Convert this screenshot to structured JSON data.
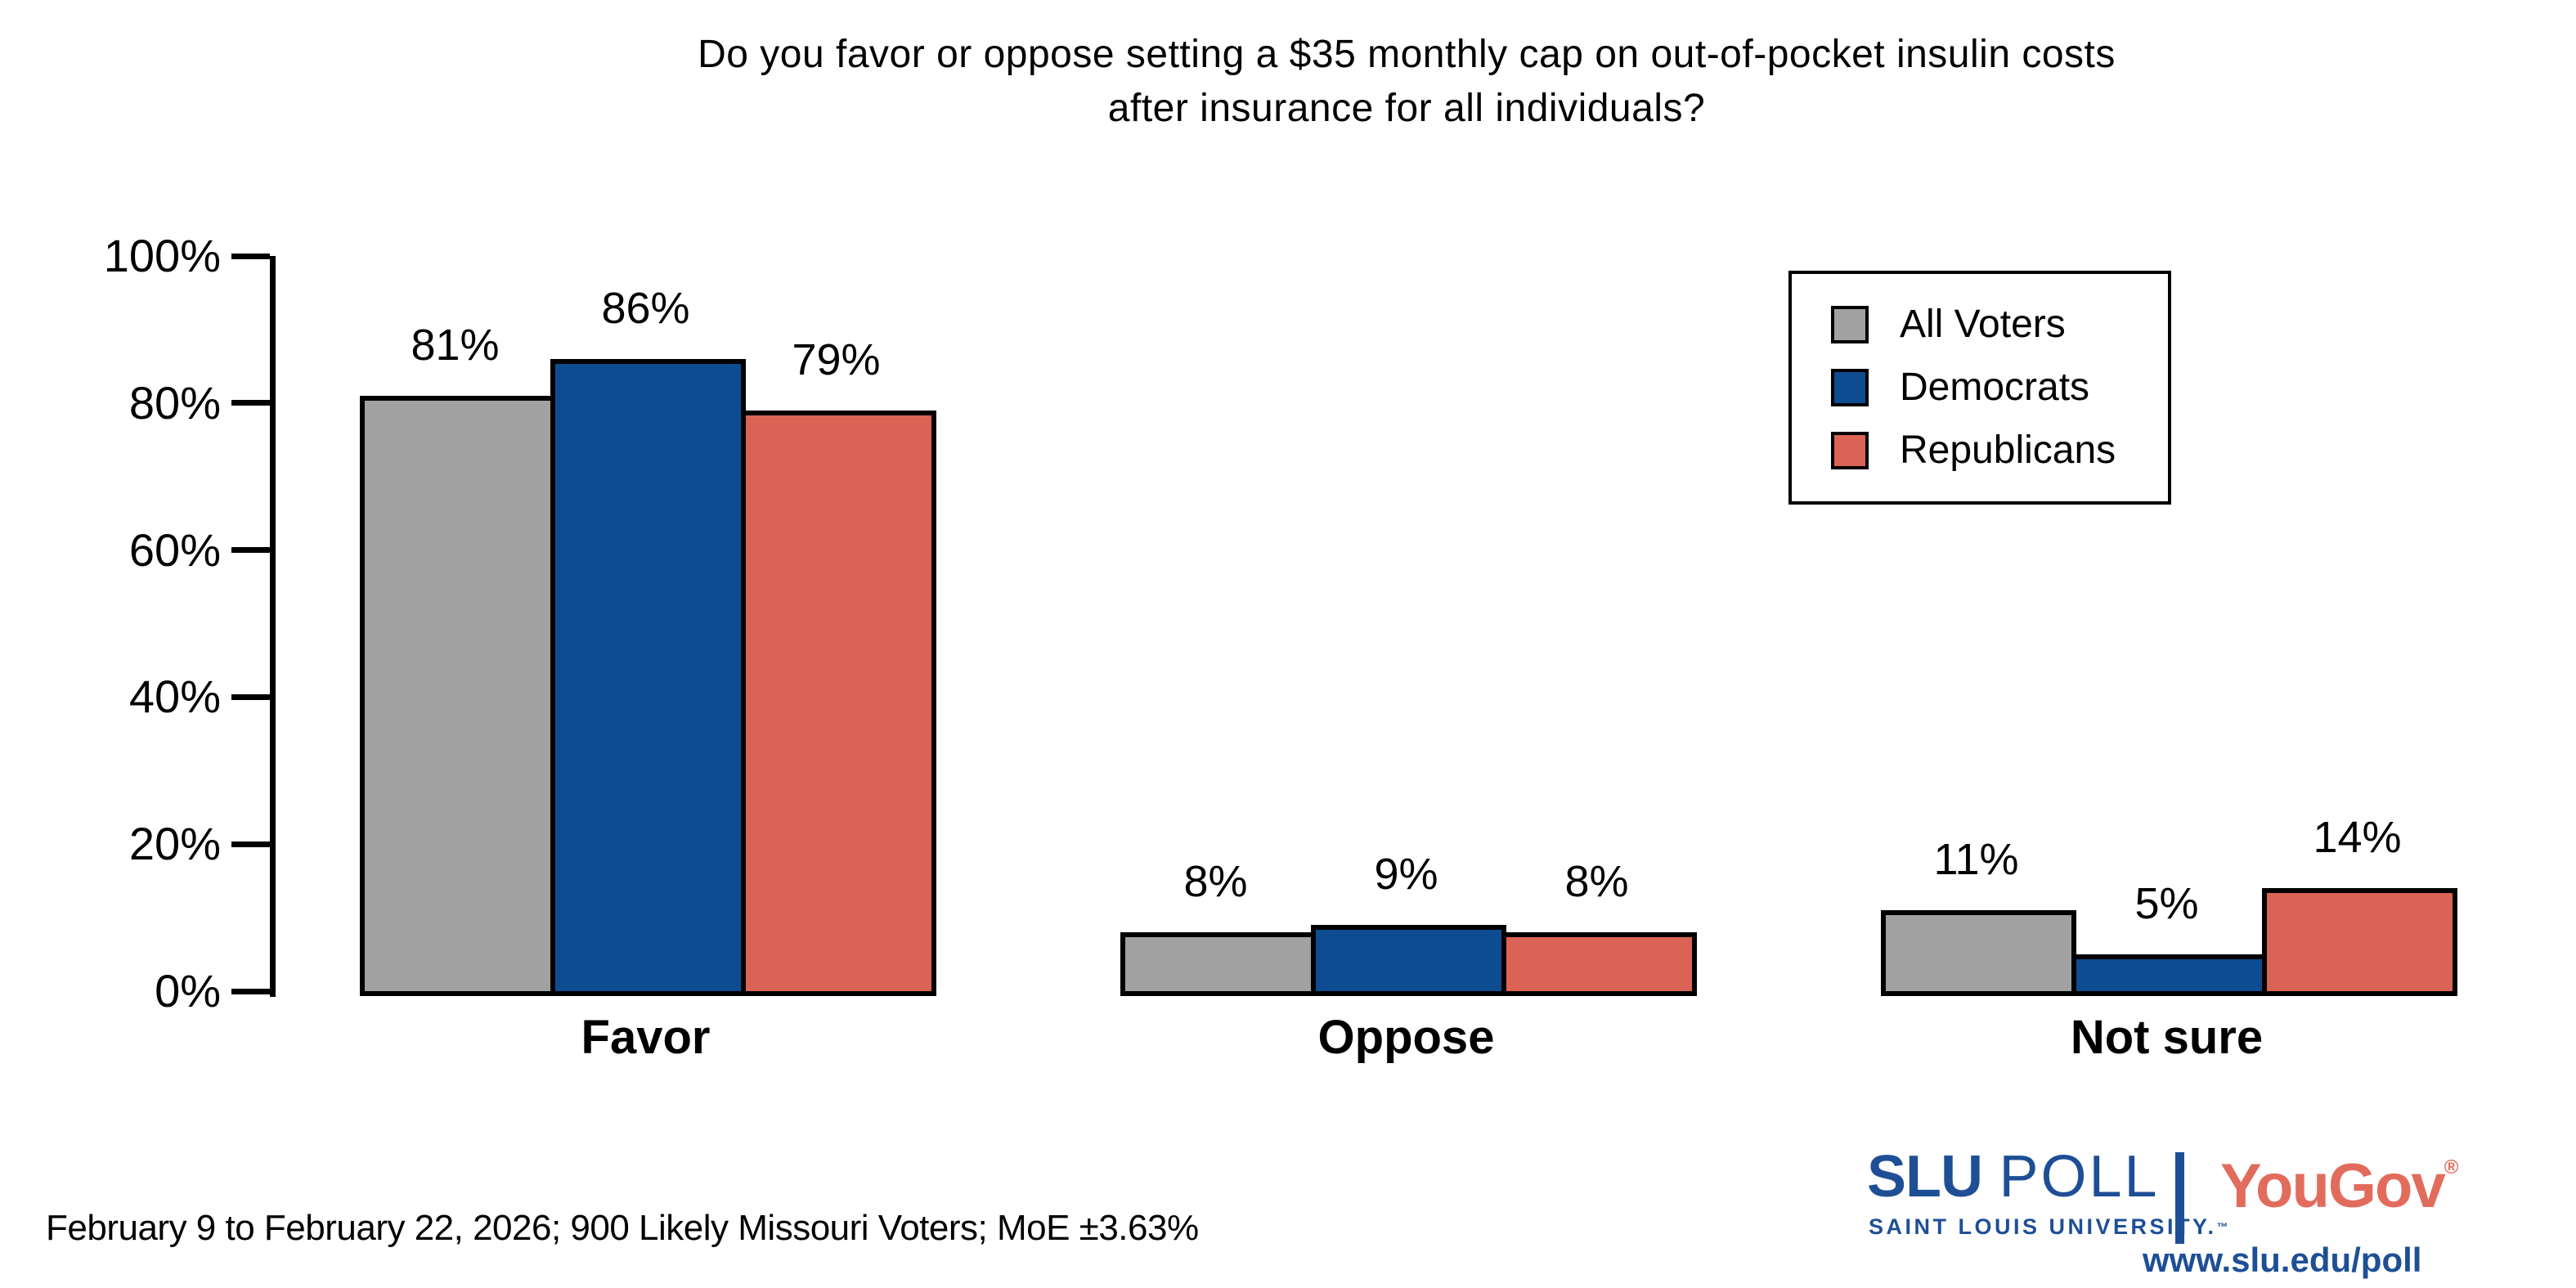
{
  "title": {
    "line1": "Do you favor or oppose setting a $35 monthly cap on out-of-pocket insulin costs",
    "line2": "after insurance for all individuals?"
  },
  "chart_data": {
    "type": "bar",
    "categories": [
      "Favor",
      "Oppose",
      "Not sure"
    ],
    "series": [
      {
        "name": "All Voters",
        "color": "#a1a1a1",
        "values": [
          81,
          8,
          11
        ]
      },
      {
        "name": "Democrats",
        "color": "#0e4c92",
        "values": [
          86,
          9,
          5
        ]
      },
      {
        "name": "Republicans",
        "color": "#db6356",
        "values": [
          79,
          8,
          14
        ]
      }
    ],
    "value_label_format": "percent",
    "y_ticks": [
      "0%",
      "20%",
      "40%",
      "60%",
      "80%",
      "100%"
    ],
    "ylim": [
      0,
      100
    ],
    "ylabel": "",
    "xlabel": "",
    "grid": false,
    "legend_position": "upper right",
    "bar_border_color": "#000000"
  },
  "footer": {
    "note": "February 9 to February 22, 2026; 900 Likely Missouri Voters; MoE ±3.63%"
  },
  "branding": {
    "slu": "SLU",
    "poll": "POLL",
    "tagline": "SAINT LOUIS UNIVERSITY.",
    "trademark": "™",
    "partner": "YouGov",
    "registered": "®",
    "url": "www.slu.edu/poll",
    "slu_blue": "#1e4f96",
    "yougov_red": "#e26c5c"
  }
}
